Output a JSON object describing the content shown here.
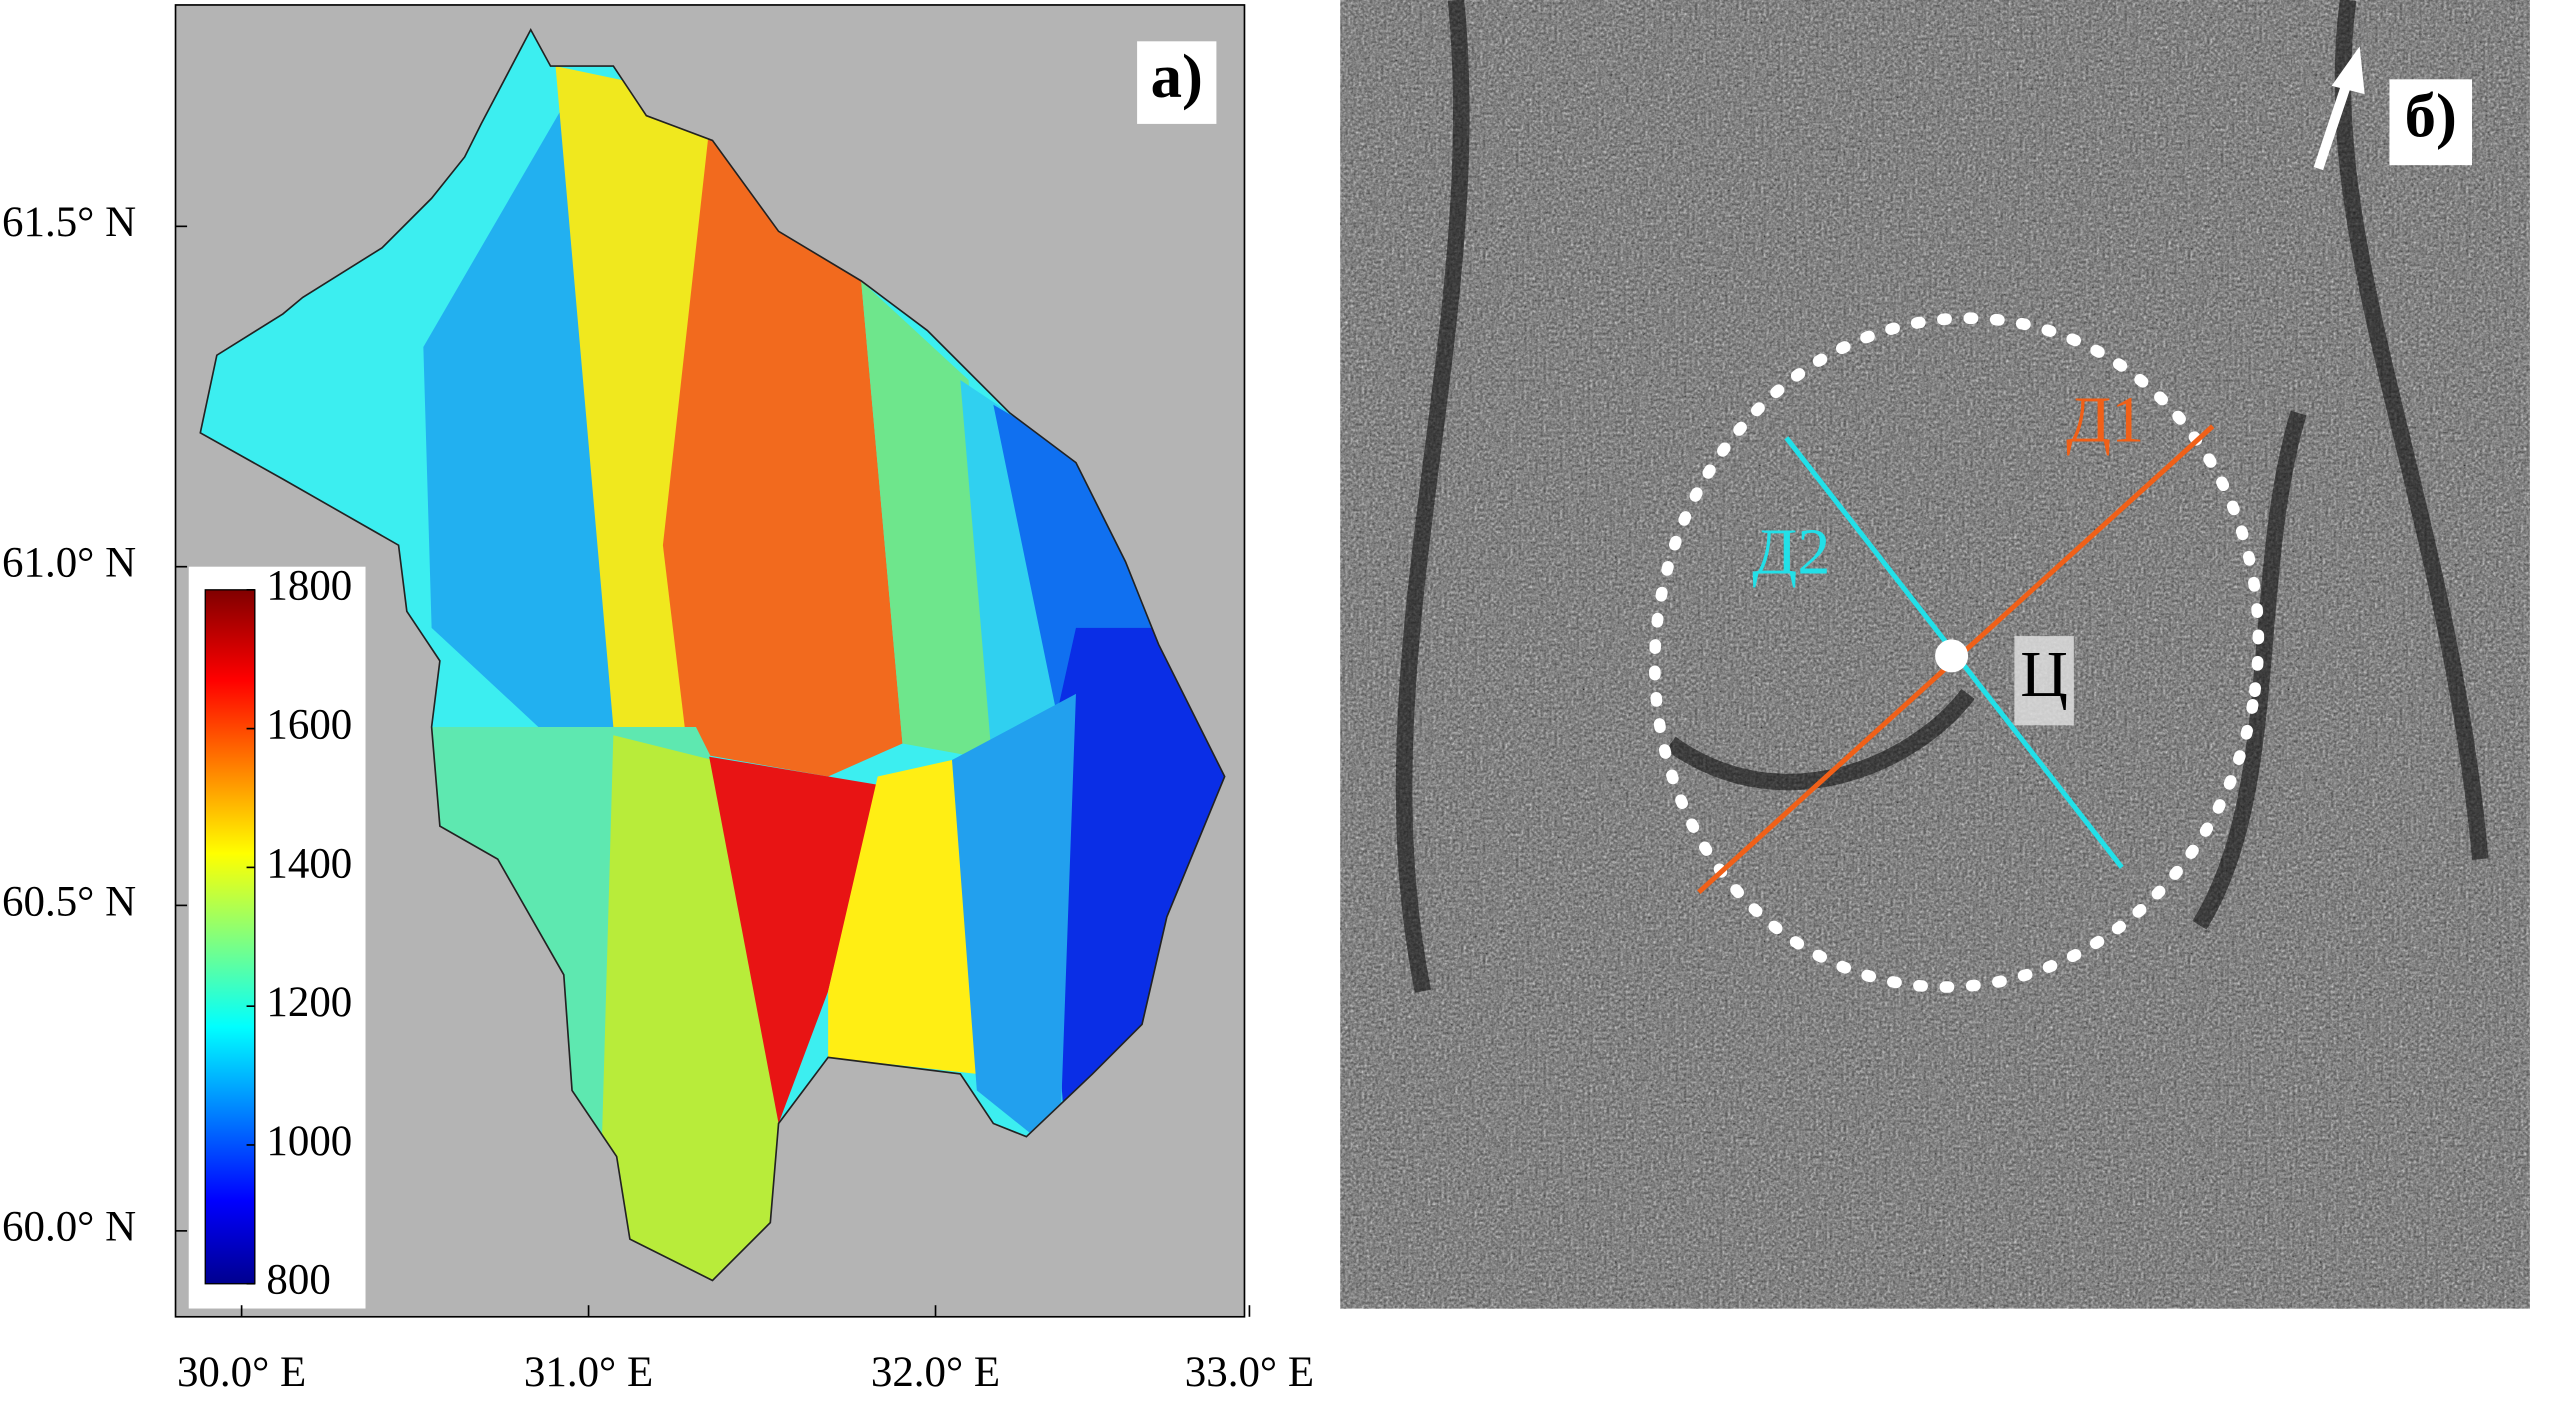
{
  "panel_a": {
    "label": "a)",
    "lat_labels": [
      "61.5° N",
      "61.0° N",
      "60.5° N",
      "60.0° N"
    ],
    "lon_labels": [
      "30.0° E",
      "31.0° E",
      "32.0° E",
      "33.0° E"
    ],
    "colorbar_ticks": [
      1800,
      1600,
      1400,
      1200,
      1000,
      800
    ]
  },
  "panel_b": {
    "label": "б)",
    "line_labels": [
      "Д1",
      "Д2"
    ],
    "center_label": "Ц"
  }
}
